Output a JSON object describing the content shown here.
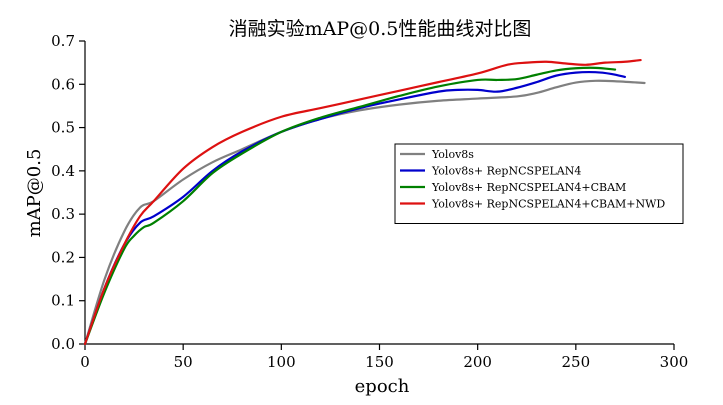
{
  "chart_data": {
    "type": "line",
    "title": "消融实验mAP@0.5性能曲线对比图",
    "xlabel": "epoch",
    "ylabel": "mAP@0.5",
    "xlim": [
      0,
      300
    ],
    "ylim": [
      0,
      0.7
    ],
    "x_ticks": [
      0,
      50,
      100,
      150,
      200,
      250,
      300
    ],
    "y_ticks": [
      0.0,
      0.1,
      0.2,
      0.3,
      0.4,
      0.5,
      0.6,
      0.7
    ],
    "x_tick_labels": [
      "0",
      "50",
      "100",
      "150",
      "200",
      "250",
      "300"
    ],
    "y_tick_labels": [
      "0.0",
      "0.1",
      "0.2",
      "0.3",
      "0.4",
      "0.5",
      "0.6",
      "0.7"
    ],
    "grid": false,
    "legend_position": "center-right",
    "series": [
      {
        "name": "Yolov8s",
        "color": "#808080",
        "x": [
          0,
          10,
          20,
          28,
          35,
          50,
          65,
          80,
          100,
          120,
          140,
          160,
          180,
          200,
          220,
          230,
          240,
          250,
          260,
          270,
          285
        ],
        "y": [
          0,
          0.15,
          0.26,
          0.315,
          0.33,
          0.38,
          0.42,
          0.45,
          0.49,
          0.52,
          0.54,
          0.553,
          0.562,
          0.567,
          0.572,
          0.58,
          0.593,
          0.604,
          0.608,
          0.607,
          0.603
        ]
      },
      {
        "name": "Yolov8s+ RepNCSPELAN4",
        "color": "#0000cc",
        "x": [
          0,
          10,
          20,
          28,
          35,
          50,
          65,
          80,
          100,
          120,
          140,
          160,
          180,
          190,
          200,
          210,
          220,
          230,
          240,
          250,
          260,
          268,
          275
        ],
        "y": [
          0,
          0.13,
          0.23,
          0.28,
          0.295,
          0.34,
          0.4,
          0.445,
          0.49,
          0.52,
          0.545,
          0.565,
          0.583,
          0.587,
          0.587,
          0.583,
          0.592,
          0.605,
          0.62,
          0.627,
          0.628,
          0.624,
          0.617
        ]
      },
      {
        "name": "Yolov8s+ RepNCSPELAN4+CBAM",
        "color": "#008000",
        "x": [
          0,
          10,
          20,
          25,
          30,
          35,
          50,
          65,
          80,
          100,
          120,
          140,
          160,
          180,
          200,
          210,
          220,
          230,
          240,
          250,
          260,
          270
        ],
        "y": [
          0,
          0.12,
          0.22,
          0.25,
          0.27,
          0.28,
          0.33,
          0.395,
          0.44,
          0.49,
          0.523,
          0.548,
          0.573,
          0.595,
          0.61,
          0.61,
          0.612,
          0.622,
          0.632,
          0.637,
          0.638,
          0.634
        ]
      },
      {
        "name": "Yolov8s+ RepNCSPELAN4+CBAM+NWD",
        "color": "#dd1111",
        "x": [
          0,
          10,
          20,
          28,
          35,
          50,
          65,
          80,
          100,
          120,
          140,
          160,
          180,
          200,
          215,
          225,
          235,
          245,
          255,
          265,
          275,
          283
        ],
        "y": [
          0,
          0.13,
          0.23,
          0.295,
          0.33,
          0.405,
          0.455,
          0.49,
          0.525,
          0.545,
          0.565,
          0.585,
          0.605,
          0.625,
          0.645,
          0.65,
          0.652,
          0.648,
          0.645,
          0.65,
          0.652,
          0.656
        ]
      }
    ]
  }
}
